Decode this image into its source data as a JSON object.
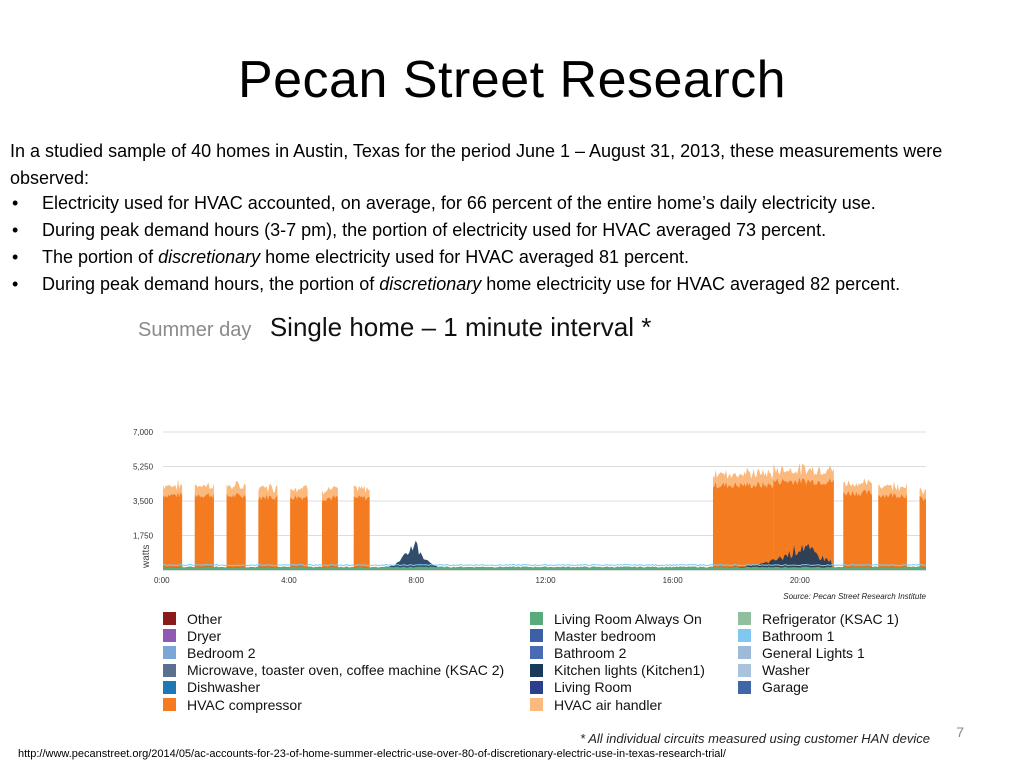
{
  "slide": {
    "title": "Pecan Street Research",
    "intro": "In a studied sample of 40 homes in Austin, Texas for the period June 1 – August 31, 2013, these measurements were observed:",
    "bullet_glyph": "•",
    "bullets": [
      {
        "text": "Electricity used for HVAC accounted, on average, for 66 percent of the entire home’s daily electricity use."
      },
      {
        "text": "During peak demand hours (3-7 pm), the portion of electricity used for HVAC averaged 73 percent."
      },
      {
        "before": "The portion of ",
        "em": "discretionary",
        "after": " home electricity used for HVAC averaged 81 percent."
      },
      {
        "before": "During peak demand hours, the portion of ",
        "em": "discretionary",
        "after": " home electricity use for HVAC averaged 82 percent."
      }
    ],
    "page_number": "7",
    "footnote": "* All individual circuits measured using customer HAN device",
    "url": "http://www.pecanstreet.org/2014/05/ac-accounts-for-23-of-home-summer-electric-use-over-80-of-discretionary-electric-use-in-texas-research-trial/"
  },
  "chart_heading": {
    "subtitle": "Summer day",
    "title": "Single home – 1 minute interval *"
  },
  "chart_data": {
    "type": "area",
    "stacked": true,
    "ylabel": "watts",
    "source": "Source: Pecan Street Research Institute",
    "x_ticks": [
      "0:00",
      "4:00",
      "8:00",
      "12:00",
      "16:00",
      "20:00"
    ],
    "y_ticks": [
      "1,750",
      "3,500",
      "5,250",
      "7,000"
    ],
    "ylim": [
      0,
      7000
    ],
    "xlim_hours": [
      0,
      24
    ],
    "grid": true,
    "legend_position": "bottom",
    "series": [
      {
        "name": "Other",
        "color": "#8b1a1a"
      },
      {
        "name": "Dryer",
        "color": "#8e5ab3"
      },
      {
        "name": "Bedroom 2",
        "color": "#7ba7d7"
      },
      {
        "name": "Microwave, toaster oven, coffee machine (KSAC 2)",
        "color": "#5b6f8e"
      },
      {
        "name": "Dishwasher",
        "color": "#1f77b4"
      },
      {
        "name": "HVAC compressor",
        "color": "#f47b20"
      },
      {
        "name": "Living Room Always On",
        "color": "#5aab7b"
      },
      {
        "name": "Master bedroom",
        "color": "#3d5fa8"
      },
      {
        "name": "Bathroom 2",
        "color": "#4a6ab5"
      },
      {
        "name": "Kitchen lights (Kitchen1)",
        "color": "#1a3a5c"
      },
      {
        "name": "Living Room",
        "color": "#2b3f8c"
      },
      {
        "name": "HVAC air handler",
        "color": "#fcb97d"
      },
      {
        "name": "Refrigerator (KSAC 1)",
        "color": "#8fbf9f"
      },
      {
        "name": "Bathroom 1",
        "color": "#7fc9f0"
      },
      {
        "name": "General Lights 1",
        "color": "#9dbad8"
      },
      {
        "name": "Washer",
        "color": "#a9c3de"
      },
      {
        "name": "Garage",
        "color": "#3f67a8"
      }
    ],
    "hvac_cycles": [
      {
        "start": 0.0,
        "end": 0.6,
        "compressor": 3800,
        "air_handler": 500
      },
      {
        "start": 1.0,
        "end": 1.6,
        "compressor": 3800,
        "air_handler": 500
      },
      {
        "start": 2.0,
        "end": 2.6,
        "compressor": 3750,
        "air_handler": 500
      },
      {
        "start": 3.0,
        "end": 3.6,
        "compressor": 3700,
        "air_handler": 500
      },
      {
        "start": 4.0,
        "end": 4.55,
        "compressor": 3700,
        "air_handler": 500
      },
      {
        "start": 5.0,
        "end": 5.5,
        "compressor": 3650,
        "air_handler": 450
      },
      {
        "start": 6.0,
        "end": 6.5,
        "compressor": 3650,
        "air_handler": 450
      },
      {
        "start": 17.3,
        "end": 19.2,
        "compressor": 4300,
        "air_handler": 600
      },
      {
        "start": 19.2,
        "end": 21.1,
        "compressor": 4500,
        "air_handler": 600
      },
      {
        "start": 21.4,
        "end": 22.3,
        "compressor": 3900,
        "air_handler": 500
      },
      {
        "start": 22.5,
        "end": 23.4,
        "compressor": 3800,
        "air_handler": 500
      },
      {
        "start": 23.8,
        "end": 24.0,
        "compressor": 3600,
        "air_handler": 400
      }
    ],
    "baseload": {
      "level": 150,
      "bumps": [
        {
          "start": 6.8,
          "end": 8.6,
          "peak": 1800,
          "at": 7.9
        },
        {
          "start": 17.4,
          "end": 21.0,
          "peak": 1500,
          "at": 20.1
        }
      ]
    }
  }
}
